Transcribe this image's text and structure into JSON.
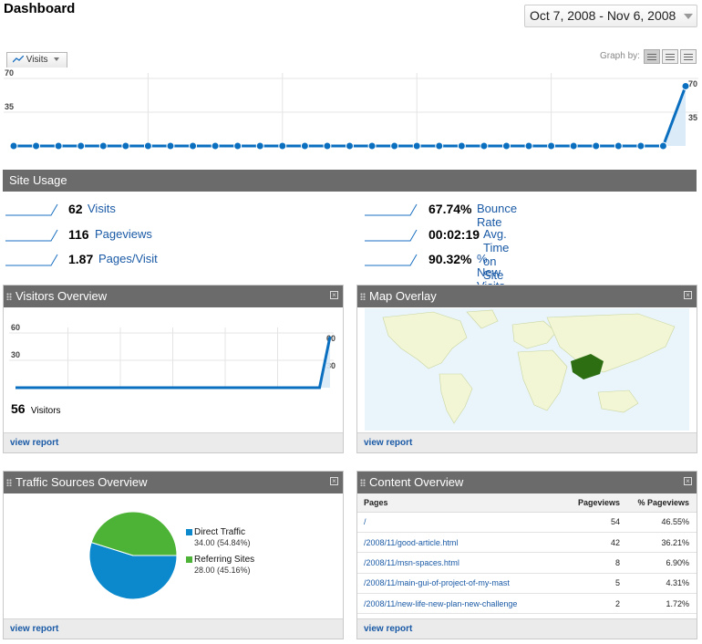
{
  "header": {
    "title": "Dashboard",
    "date_range": "Oct 7, 2008 - Nov 6, 2008"
  },
  "graph": {
    "tab_label": "Visits",
    "graph_by_label": "Graph by:",
    "line_color": "#0b6fc0"
  },
  "chart_data": [
    {
      "type": "area",
      "title": "",
      "series": [
        {
          "name": "Visits",
          "values": [
            0,
            0,
            0,
            0,
            0,
            0,
            0,
            0,
            0,
            0,
            0,
            0,
            0,
            0,
            0,
            0,
            0,
            0,
            0,
            0,
            0,
            0,
            0,
            0,
            0,
            0,
            0,
            0,
            0,
            0,
            62
          ]
        }
      ],
      "ylim": [
        0,
        70
      ],
      "y_ticks": [
        "35",
        "70"
      ],
      "grid": true
    },
    {
      "type": "area",
      "title": "",
      "series": [
        {
          "name": "Visitors",
          "values": [
            0,
            0,
            0,
            0,
            0,
            0,
            0,
            0,
            0,
            0,
            0,
            0,
            0,
            0,
            0,
            0,
            0,
            0,
            0,
            0,
            0,
            0,
            0,
            0,
            0,
            0,
            0,
            0,
            0,
            0,
            56
          ]
        }
      ],
      "ylim": [
        0,
        60
      ],
      "y_ticks": [
        "30",
        "60"
      ],
      "grid": true
    },
    {
      "type": "pie",
      "title": "",
      "categories": [
        "Direct Traffic",
        "Referring Sites"
      ],
      "values": [
        34.0,
        28.0
      ],
      "percents": [
        "54.84%",
        "45.16%"
      ],
      "colors": [
        "#0b89cc",
        "#4db336"
      ],
      "legend": "right"
    }
  ],
  "site_usage": {
    "title": "Site Usage",
    "metrics": [
      {
        "value": "62",
        "label": "Visits"
      },
      {
        "value": "116",
        "label": "Pageviews"
      },
      {
        "value": "1.87",
        "label": "Pages/Visit"
      },
      {
        "value": "67.74%",
        "label": "Bounce Rate"
      },
      {
        "value": "00:02:19",
        "label": "Avg. Time on Site"
      },
      {
        "value": "90.32%",
        "label": "% New Visits"
      }
    ]
  },
  "visitors_overview": {
    "title": "Visitors Overview",
    "count": "56",
    "count_label": "Visitors",
    "footer": "view report"
  },
  "map_overlay": {
    "title": "Map Overlay",
    "footer": "view report",
    "highlight_color": "#2d6e12"
  },
  "traffic_sources": {
    "title": "Traffic Sources Overview",
    "legend": [
      {
        "name": "Direct Traffic",
        "value": "34.00 (54.84%)"
      },
      {
        "name": "Referring Sites",
        "value": "28.00 (45.16%)"
      }
    ],
    "footer": "view report"
  },
  "content_overview": {
    "title": "Content Overview",
    "columns": [
      "Pages",
      "Pageviews",
      "% Pageviews"
    ],
    "rows": [
      {
        "page": "/",
        "pageviews": "54",
        "percent": "46.55%"
      },
      {
        "page": "/2008/11/good-article.html",
        "pageviews": "42",
        "percent": "36.21%"
      },
      {
        "page": "/2008/11/msn-spaces.html",
        "pageviews": "8",
        "percent": "6.90%"
      },
      {
        "page": "/2008/11/main-gui-of-project-of-my-mast",
        "pageviews": "5",
        "percent": "4.31%"
      },
      {
        "page": "/2008/11/new-life-new-plan-new-challenge",
        "pageviews": "2",
        "percent": "1.72%"
      }
    ],
    "footer": "view report"
  }
}
